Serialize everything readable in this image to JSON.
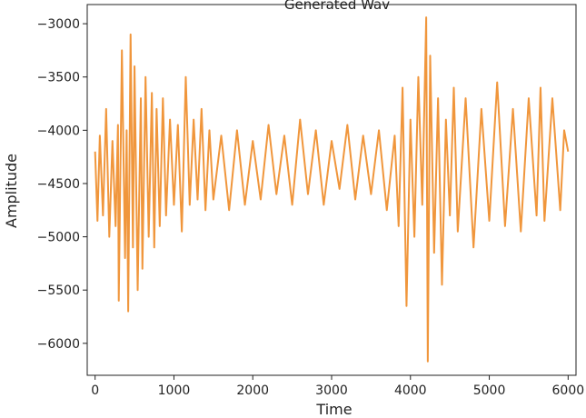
{
  "chart_data": {
    "type": "line",
    "title": "Generated Wav",
    "xlabel": "Time",
    "ylabel": "Amplitude",
    "xlim": [
      -100,
      6100
    ],
    "ylim": [
      -6300,
      -2820
    ],
    "x_ticks": [
      0,
      1000,
      2000,
      3000,
      4000,
      5000,
      6000
    ],
    "y_ticks": [
      -6000,
      -5500,
      -5000,
      -4500,
      -4000,
      -3500,
      -3000
    ],
    "x_tick_labels": [
      "0",
      "1000",
      "2000",
      "3000",
      "4000",
      "5000",
      "6000"
    ],
    "y_tick_labels": [
      "−6000",
      "−5500",
      "−5000",
      "−4500",
      "−4000",
      "−3500",
      "−3000"
    ],
    "grid": false,
    "series": [
      {
        "color": "#f0963c",
        "x": [
          0,
          30,
          60,
          100,
          140,
          180,
          220,
          260,
          290,
          300,
          340,
          380,
          400,
          420,
          450,
          480,
          500,
          540,
          580,
          600,
          640,
          680,
          720,
          750,
          780,
          820,
          860,
          900,
          950,
          1000,
          1050,
          1100,
          1150,
          1200,
          1250,
          1300,
          1350,
          1400,
          1450,
          1500,
          1600,
          1700,
          1800,
          1900,
          2000,
          2100,
          2200,
          2300,
          2400,
          2500,
          2600,
          2700,
          2800,
          2900,
          3000,
          3100,
          3200,
          3300,
          3400,
          3500,
          3600,
          3700,
          3800,
          3850,
          3900,
          3950,
          4000,
          4050,
          4100,
          4150,
          4200,
          4220,
          4250,
          4300,
          4350,
          4400,
          4450,
          4500,
          4550,
          4600,
          4700,
          4800,
          4900,
          5000,
          5100,
          5200,
          5300,
          5400,
          5500,
          5600,
          5650,
          5700,
          5800,
          5900,
          5950,
          6000
        ],
        "y": [
          -4200,
          -4850,
          -4050,
          -4800,
          -3800,
          -5000,
          -4100,
          -4900,
          -3950,
          -5600,
          -3250,
          -5200,
          -4000,
          -5700,
          -3100,
          -5100,
          -3400,
          -5500,
          -3700,
          -5300,
          -3500,
          -5000,
          -3650,
          -5100,
          -3800,
          -4900,
          -3700,
          -4800,
          -3900,
          -4700,
          -3950,
          -4950,
          -3500,
          -4700,
          -3900,
          -4650,
          -3800,
          -4750,
          -4000,
          -4650,
          -4050,
          -4750,
          -4000,
          -4700,
          -4100,
          -4650,
          -3950,
          -4600,
          -4050,
          -4700,
          -3900,
          -4600,
          -4000,
          -4700,
          -4100,
          -4550,
          -3950,
          -4650,
          -4050,
          -4600,
          -4000,
          -4750,
          -4050,
          -4900,
          -3600,
          -5650,
          -3900,
          -5000,
          -3500,
          -4700,
          -2940,
          -6170,
          -3300,
          -5150,
          -3700,
          -5450,
          -3900,
          -4800,
          -3600,
          -4950,
          -3700,
          -5100,
          -3800,
          -4850,
          -3550,
          -4900,
          -3800,
          -4950,
          -3700,
          -4800,
          -3600,
          -4850,
          -3700,
          -4750,
          -4000,
          -4200
        ]
      }
    ]
  }
}
